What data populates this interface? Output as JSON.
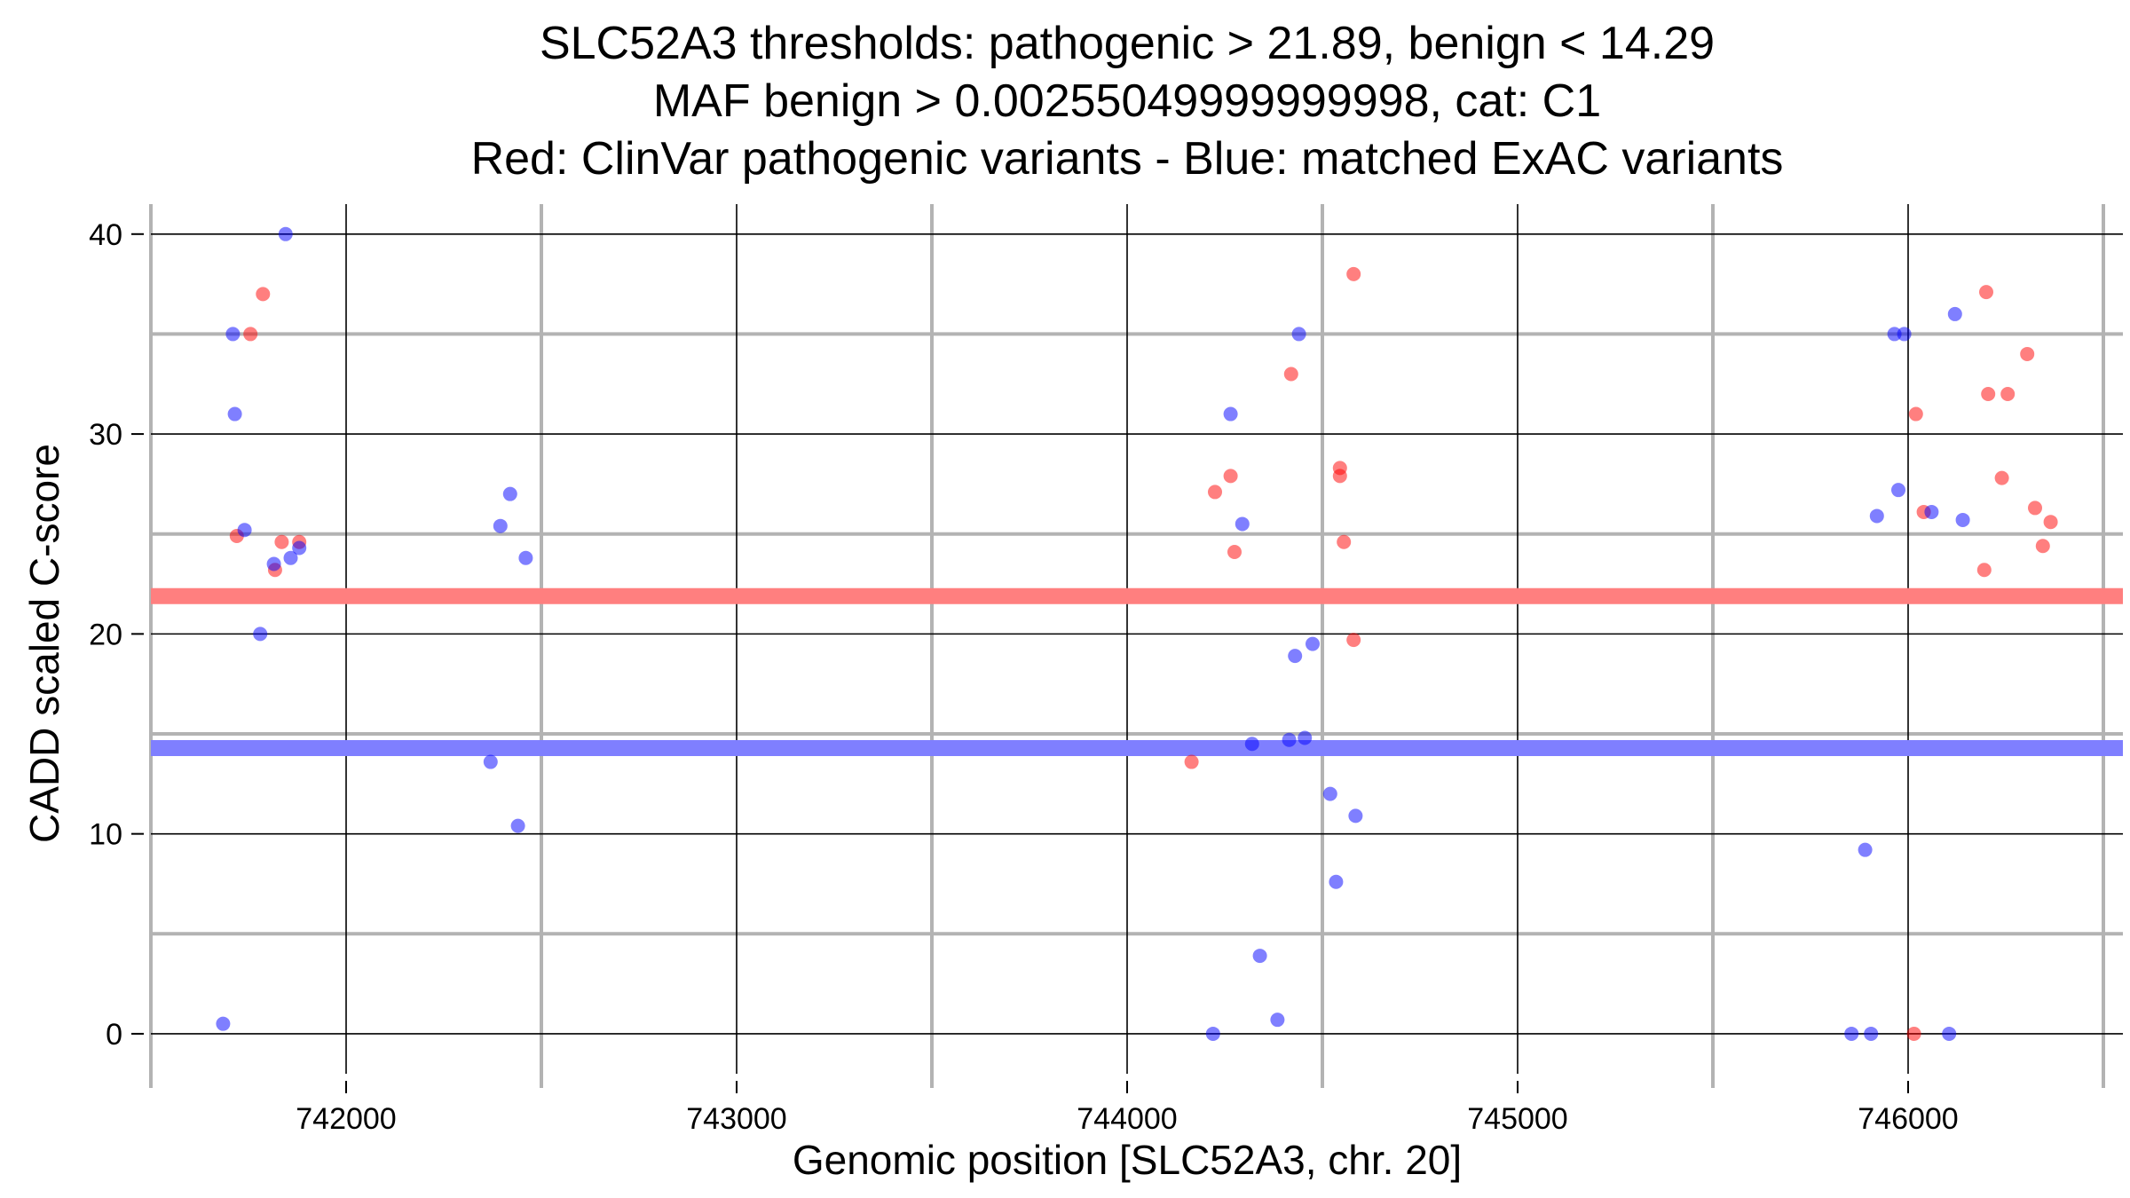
{
  "chart_data": {
    "type": "scatter",
    "title_lines": [
      "SLC52A3 thresholds: pathogenic > 21.89, benign < 14.29",
      "MAF benign > 0.00255049999999998, cat: C1",
      "Red: ClinVar pathogenic variants - Blue: matched ExAC variants"
    ],
    "xlabel": "Genomic position [SLC52A3, chr. 20]",
    "ylabel": "CADD scaled C-score",
    "xlim": [
      741500,
      746550
    ],
    "ylim": [
      -2,
      41.5
    ],
    "x_ticks": [
      742000,
      743000,
      744000,
      745000,
      746000
    ],
    "x_tick_labels": [
      "742000",
      "743000",
      "744000",
      "745000",
      "746000"
    ],
    "x_minor_ticks": [
      741500,
      742500,
      743500,
      744500,
      745500,
      746500
    ],
    "y_ticks": [
      0,
      10,
      20,
      30,
      40
    ],
    "y_tick_labels": [
      "0",
      "10",
      "20",
      "30",
      "40"
    ],
    "y_minor_ticks": [
      5,
      15,
      25,
      35
    ],
    "thresholds": [
      {
        "name": "pathogenic threshold",
        "value": 21.89,
        "color": "#ff7f7f"
      },
      {
        "name": "benign threshold",
        "value": 14.29,
        "color": "#7f7fff"
      }
    ],
    "series": [
      {
        "name": "ClinVar pathogenic variants",
        "color": "#ff0000",
        "points": [
          [
            741787,
            37.0
          ],
          [
            741755,
            35.0
          ],
          [
            741720,
            24.9
          ],
          [
            741835,
            24.6
          ],
          [
            741880,
            24.6
          ],
          [
            741818,
            23.2
          ],
          [
            744265,
            27.9
          ],
          [
            744225,
            27.1
          ],
          [
            744275,
            24.1
          ],
          [
            744420,
            33.0
          ],
          [
            744580,
            38.0
          ],
          [
            744545,
            28.3
          ],
          [
            744545,
            27.9
          ],
          [
            744555,
            24.6
          ],
          [
            744580,
            19.7
          ],
          [
            744165,
            13.6
          ],
          [
            746020,
            31.0
          ],
          [
            746040,
            26.1
          ],
          [
            746200,
            37.1
          ],
          [
            746205,
            32.0
          ],
          [
            746255,
            32.0
          ],
          [
            746240,
            27.8
          ],
          [
            746195,
            23.2
          ],
          [
            746305,
            34.0
          ],
          [
            746325,
            26.3
          ],
          [
            746365,
            25.6
          ],
          [
            746345,
            24.4
          ],
          [
            746015,
            0.0
          ]
        ]
      },
      {
        "name": "matched ExAC variants",
        "color": "#0000ff",
        "points": [
          [
            741845,
            40.0
          ],
          [
            741710,
            35.0
          ],
          [
            741715,
            31.0
          ],
          [
            741740,
            25.2
          ],
          [
            741880,
            24.3
          ],
          [
            741858,
            23.8
          ],
          [
            741815,
            23.5
          ],
          [
            741780,
            20.0
          ],
          [
            741685,
            0.5
          ],
          [
            742420,
            27.0
          ],
          [
            742395,
            25.4
          ],
          [
            742460,
            23.8
          ],
          [
            742370,
            13.6
          ],
          [
            742440,
            10.4
          ],
          [
            744440,
            35.0
          ],
          [
            744265,
            31.0
          ],
          [
            744295,
            25.5
          ],
          [
            744475,
            19.5
          ],
          [
            744430,
            18.9
          ],
          [
            744320,
            14.5
          ],
          [
            744415,
            14.7
          ],
          [
            744455,
            14.8
          ],
          [
            744520,
            12.0
          ],
          [
            744585,
            10.9
          ],
          [
            744535,
            7.6
          ],
          [
            744340,
            3.9
          ],
          [
            744385,
            0.7
          ],
          [
            744220,
            0.0
          ],
          [
            745965,
            35.0
          ],
          [
            745990,
            35.0
          ],
          [
            746120,
            36.0
          ],
          [
            745975,
            27.2
          ],
          [
            745920,
            25.9
          ],
          [
            746060,
            26.1
          ],
          [
            746140,
            25.7
          ],
          [
            745890,
            9.2
          ],
          [
            745855,
            0.0
          ],
          [
            745905,
            0.0
          ],
          [
            746105,
            0.0
          ]
        ]
      }
    ]
  }
}
